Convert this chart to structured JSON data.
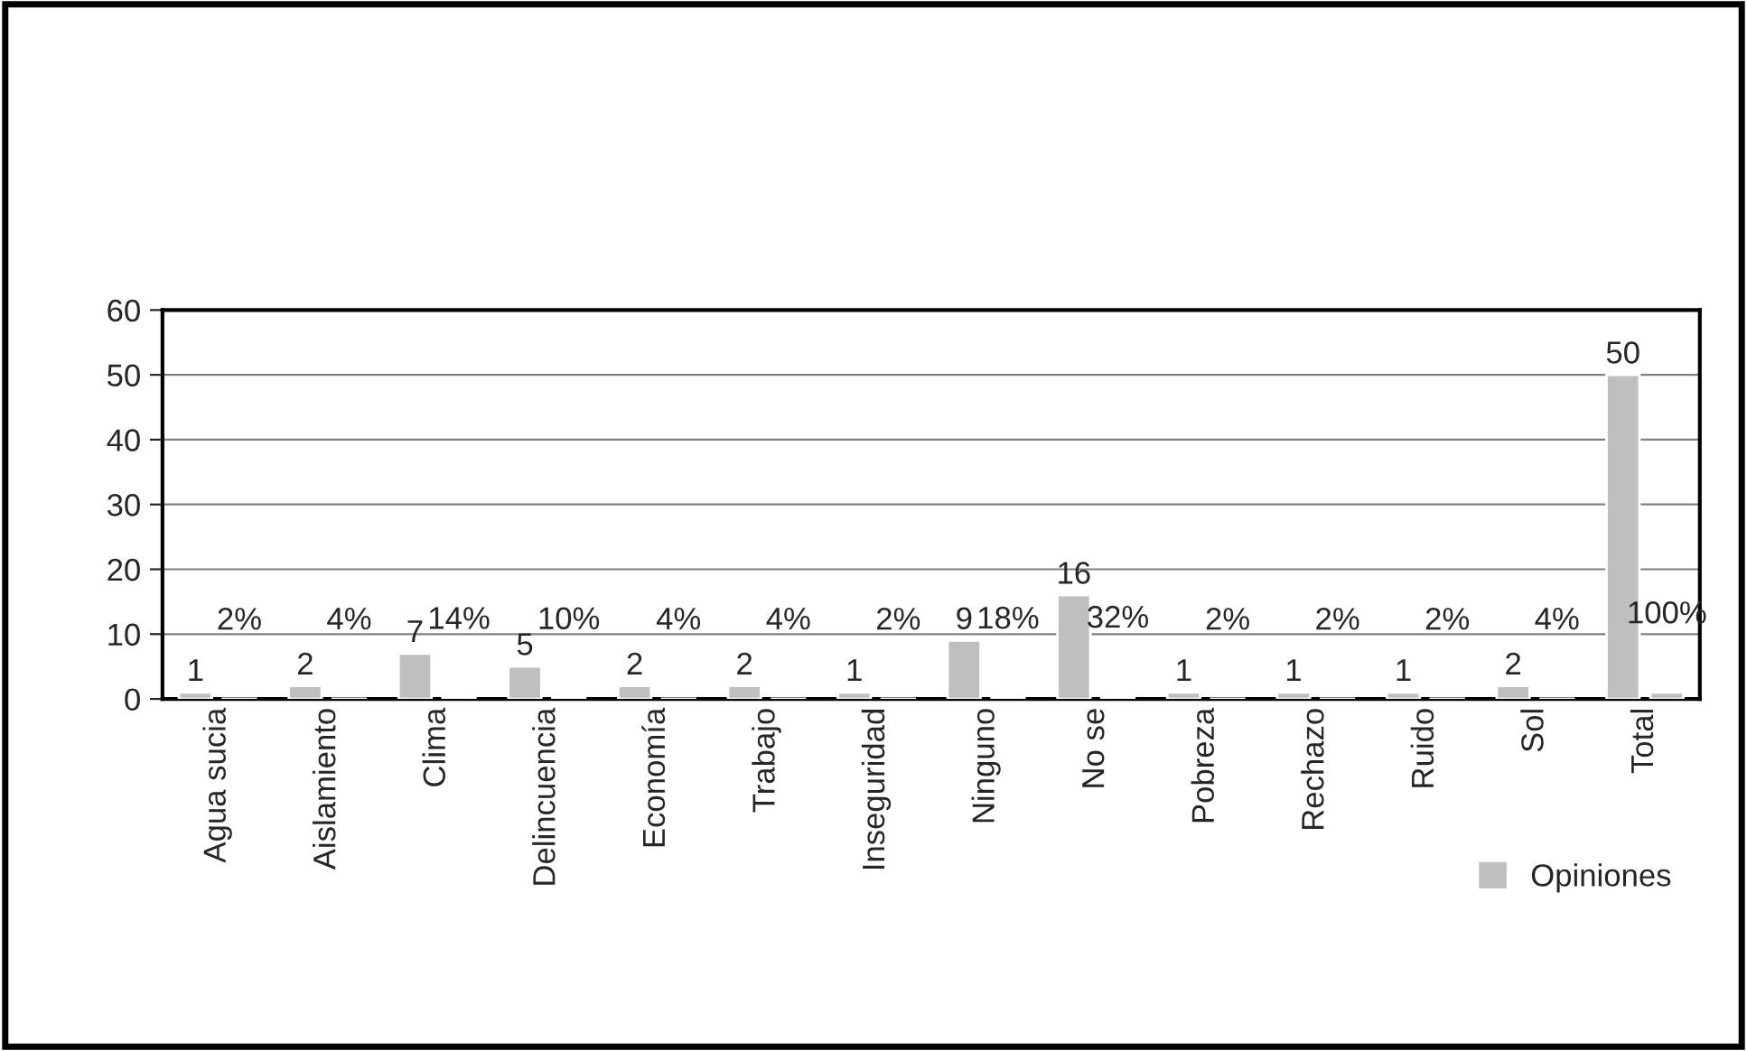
{
  "chart_data": {
    "type": "bar",
    "categories": [
      "Agua sucia",
      "Aislamiento",
      "Clima",
      "Delincuencia",
      "Economía",
      "Trabajo",
      "Inseguridad",
      "Ninguno",
      "No se",
      "Pobreza",
      "Rechazo",
      "Ruido",
      "Sol",
      "Total"
    ],
    "series": [
      {
        "name": "Opiniones",
        "color": "#bfbfbf",
        "values": [
          1,
          2,
          7,
          5,
          2,
          2,
          1,
          9,
          16,
          1,
          1,
          1,
          2,
          50
        ]
      },
      {
        "color": "#bfbfbf",
        "values": [
          0.02,
          0.04,
          0.14,
          0.1,
          0.04,
          0.04,
          0.02,
          0.18,
          0.32,
          0.02,
          0.02,
          0.02,
          0.04,
          1
        ],
        "value_labels": [
          "2%",
          "4%",
          "14%",
          "10%",
          "4%",
          "4%",
          "2%",
          "18%",
          "32%",
          "2%",
          "2%",
          "2%",
          "4%",
          "100%"
        ]
      }
    ],
    "ylim": [
      0,
      60
    ],
    "yticks": [
      0,
      10,
      20,
      30,
      40,
      50,
      60
    ],
    "grid": "y",
    "legend": "bottom right",
    "data_labels": true
  }
}
